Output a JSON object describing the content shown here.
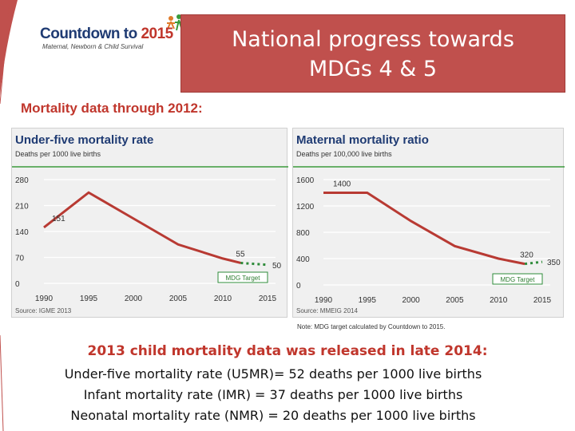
{
  "logo": {
    "name_main": "Countdown to ",
    "name_year": "2015",
    "tagline": "Maternal, Newborn & Child Survival"
  },
  "title": {
    "line1": "National progress towards",
    "line2": "MDGs 4 & 5"
  },
  "subhead": "Mortality data through 2012:",
  "colors": {
    "accent": "#c0504d",
    "line": "#b83a33",
    "target": "#2e8b3a",
    "navy": "#1f3b73"
  },
  "chart_data": [
    {
      "type": "line",
      "title": "Under-five mortality rate",
      "ylabel": "Deaths per 1000 live births",
      "source": "Source: IGME 2013",
      "x_ticks": [
        "1990",
        "1995",
        "2000",
        "2005",
        "2010",
        "2015"
      ],
      "y_ticks": [
        "280",
        "210",
        "140",
        "70",
        "0"
      ],
      "ylim": [
        0,
        280
      ],
      "xlim": [
        1990,
        2015
      ],
      "series": [
        {
          "x": [
            1990,
            1995,
            2000,
            2005,
            2010,
            2012
          ],
          "y": [
            151,
            245,
            175,
            105,
            67,
            55
          ]
        }
      ],
      "target": {
        "x": [
          2012,
          2015
        ],
        "y": [
          55,
          50
        ]
      },
      "data_labels": [
        {
          "text": "151",
          "x": 1990,
          "y": 151
        },
        {
          "text": "55",
          "x": 2012,
          "y": 55
        },
        {
          "text": "50",
          "x": 2015,
          "y": 50
        }
      ],
      "target_label": "MDG Target"
    },
    {
      "type": "line",
      "title": "Maternal mortality ratio",
      "ylabel": "Deaths per 100,000 live births",
      "source": "Source: MMEIG 2014",
      "x_ticks": [
        "1990",
        "1995",
        "2000",
        "2005",
        "2010",
        "2015"
      ],
      "y_ticks": [
        "1600",
        "1200",
        "800",
        "400",
        "0"
      ],
      "ylim": [
        0,
        1600
      ],
      "xlim": [
        1990,
        2015
      ],
      "series": [
        {
          "x": [
            1990,
            1995,
            2000,
            2005,
            2010,
            2013
          ],
          "y": [
            1400,
            1400,
            970,
            590,
            400,
            320
          ]
        }
      ],
      "target": {
        "x": [
          2013,
          2015
        ],
        "y": [
          320,
          350
        ]
      },
      "data_labels": [
        {
          "text": "1400",
          "x": 1990,
          "y": 1400
        },
        {
          "text": "320",
          "x": 2013,
          "y": 320
        },
        {
          "text": "350",
          "x": 2015,
          "y": 350
        }
      ],
      "target_label": "MDG Target"
    }
  ],
  "note": "Note: MDG target calculated by Countdown to 2015.",
  "release": "2013 child mortality data was released in late 2014:",
  "facts": [
    "Under-five mortality rate (U5MR)= 52 deaths per 1000 live births",
    "Infant mortality rate (IMR) = 37 deaths per 1000 live births",
    "Neonatal mortality rate (NMR) = 20 deaths per 1000 live births"
  ]
}
